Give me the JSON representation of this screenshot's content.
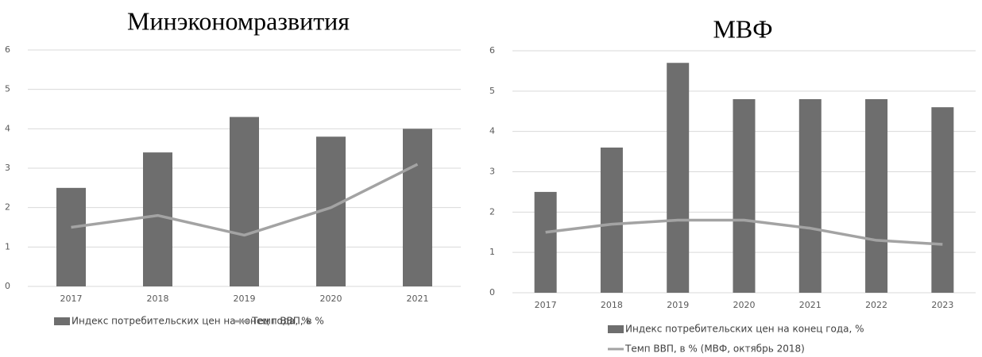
{
  "chart_data": [
    {
      "type": "combo",
      "title": "Минэкономразвития",
      "categories": [
        "2017",
        "2018",
        "2019",
        "2020",
        "2021"
      ],
      "series": [
        {
          "name": "Индекс потребительских цен на конец года, %",
          "type": "bar",
          "color": "#6e6e6e",
          "values": [
            2.5,
            3.4,
            4.3,
            3.8,
            4.0
          ]
        },
        {
          "name": "Темп ВВП, в %",
          "type": "line",
          "color": "#a3a3a3",
          "values": [
            1.5,
            1.8,
            1.3,
            2.0,
            3.1
          ]
        }
      ],
      "ylim": [
        0,
        6
      ],
      "yticks": [
        0,
        1,
        2,
        3,
        4,
        5,
        6
      ],
      "grid": true
    },
    {
      "type": "combo",
      "title": "МВФ",
      "categories": [
        "2017",
        "2018",
        "2019",
        "2020",
        "2021",
        "2022",
        "2023"
      ],
      "series": [
        {
          "name": "Индекс потребительских цен на конец года, %",
          "type": "bar",
          "color": "#6e6e6e",
          "values": [
            2.5,
            3.6,
            5.7,
            4.8,
            4.8,
            4.8,
            4.6
          ]
        },
        {
          "name": "Темп ВВП, в % (МВФ, октябрь 2018)",
          "type": "line",
          "color": "#a3a3a3",
          "values": [
            1.5,
            1.7,
            1.8,
            1.8,
            1.6,
            1.3,
            1.2
          ]
        }
      ],
      "ylim": [
        0,
        6
      ],
      "yticks": [
        0,
        1,
        2,
        3,
        4,
        5,
        6
      ],
      "grid": true
    }
  ]
}
